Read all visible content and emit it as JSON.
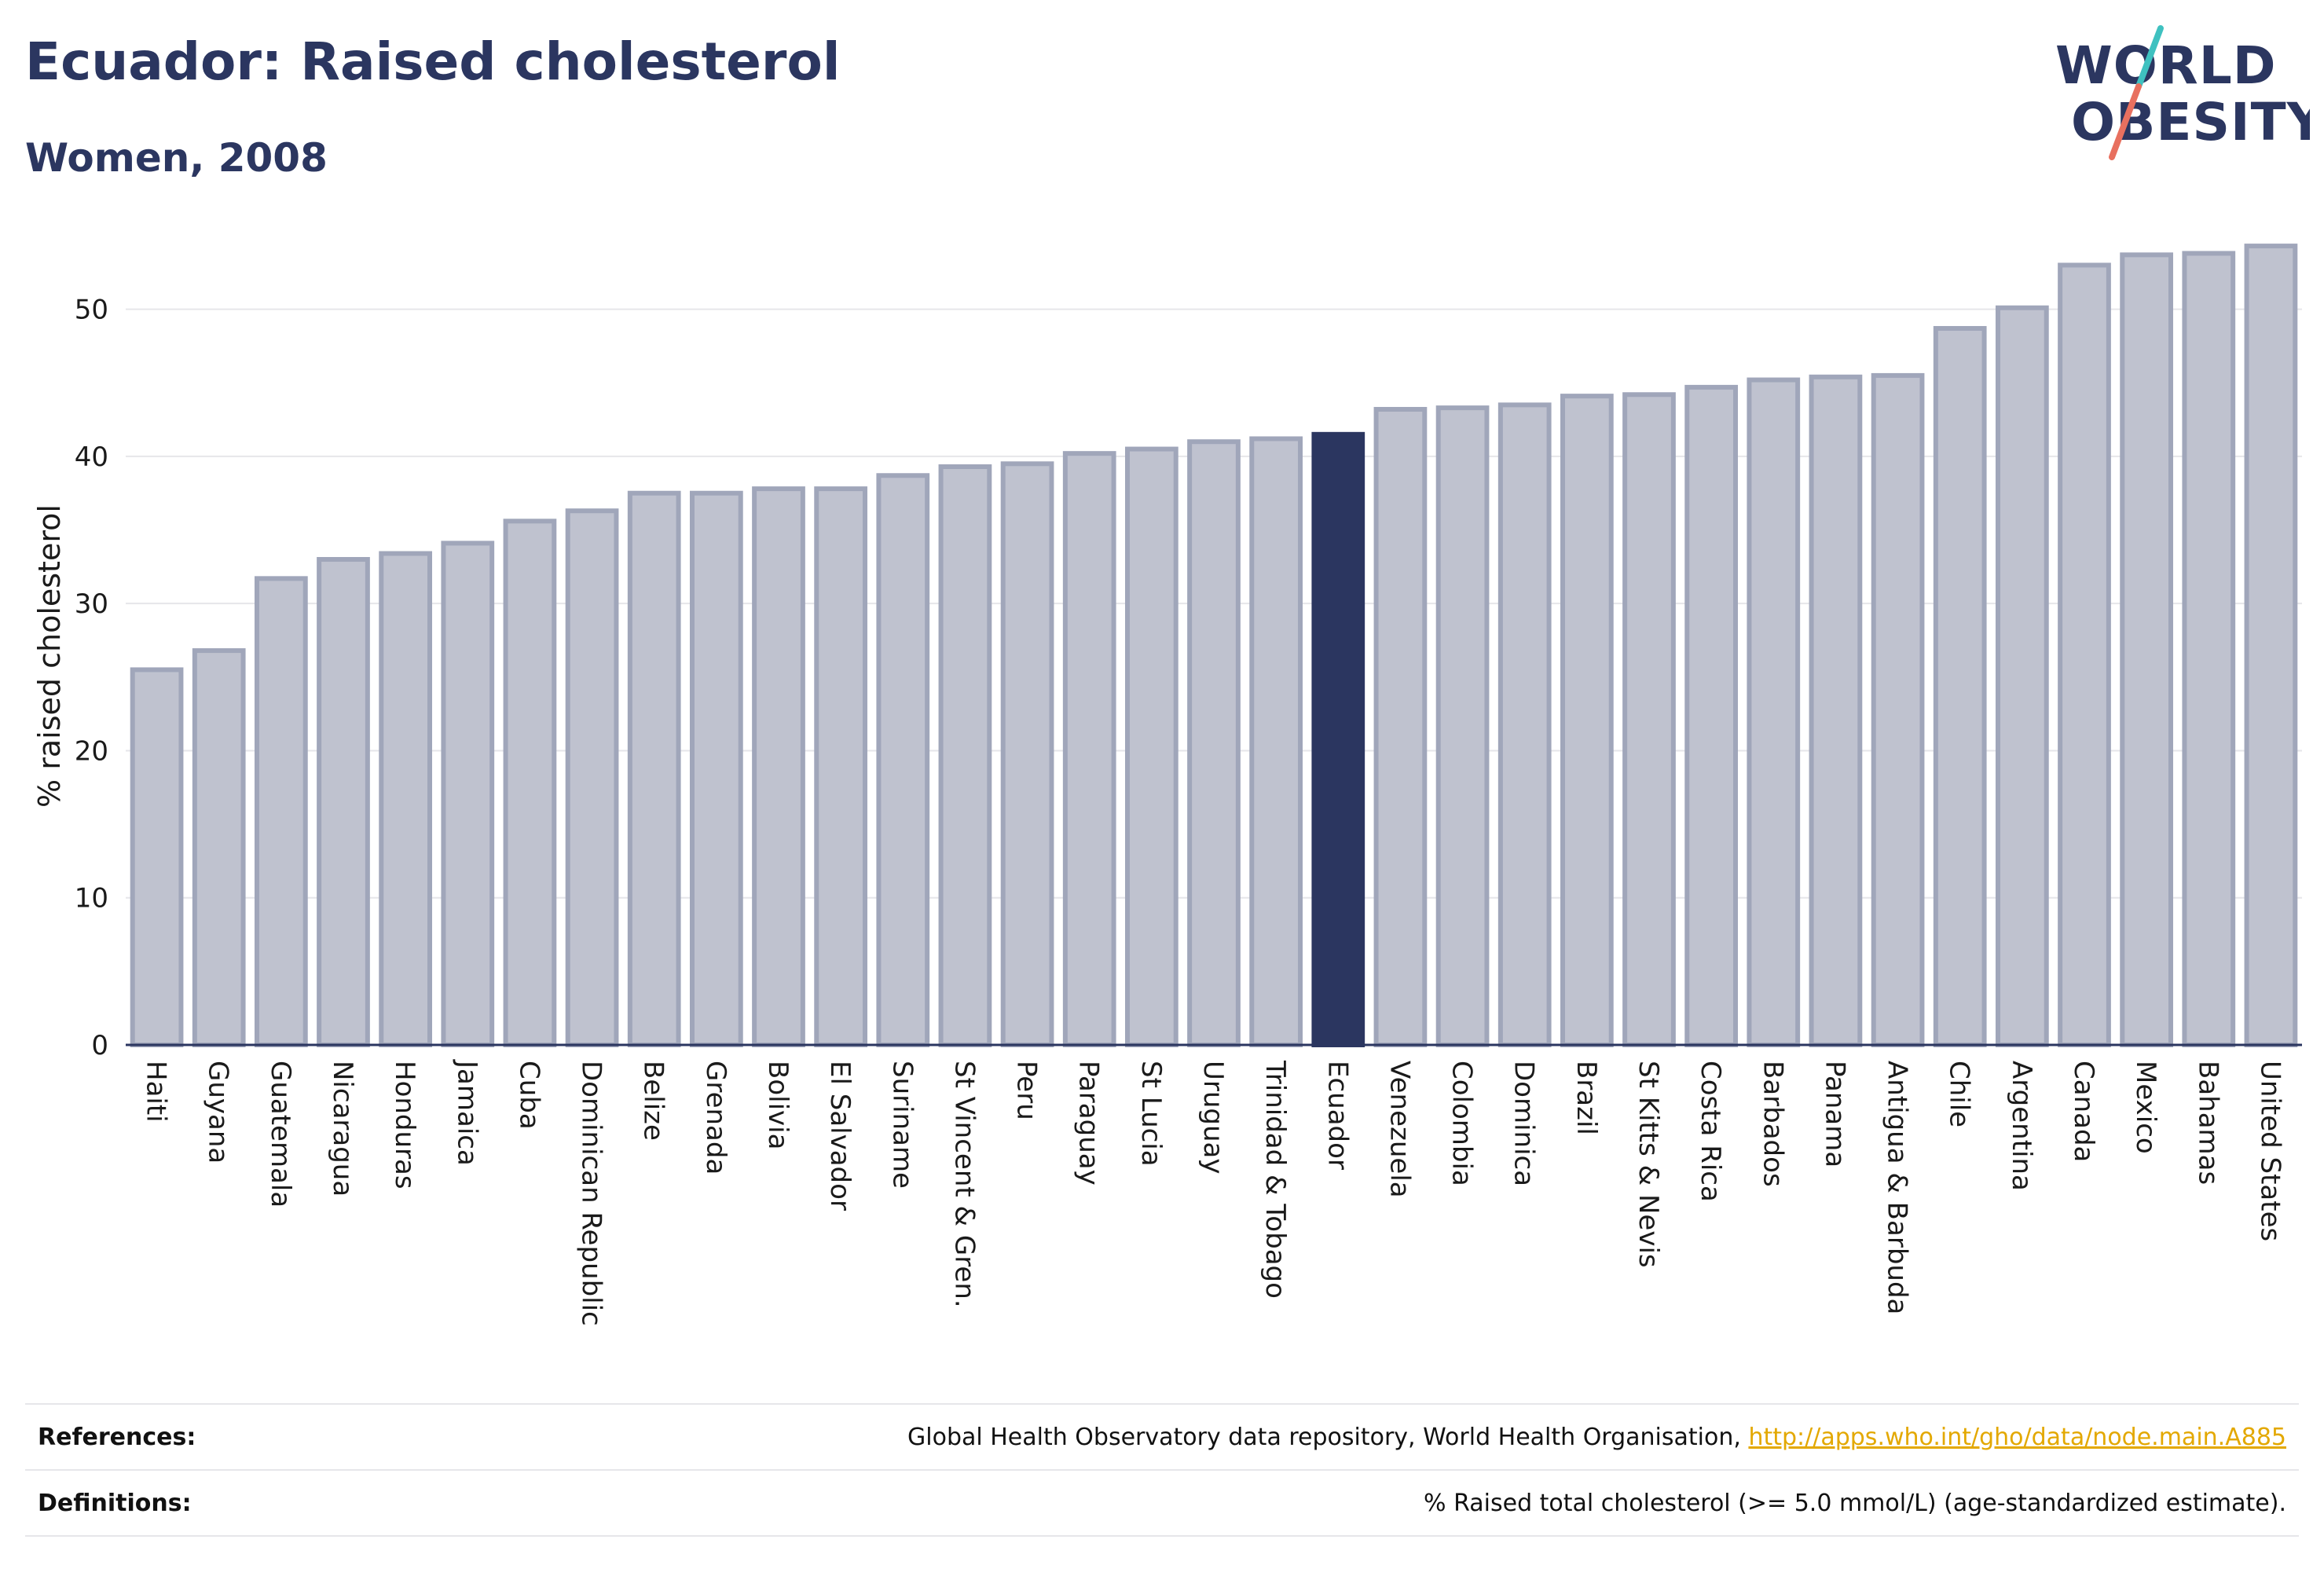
{
  "header": {
    "title": "Ecuador: Raised cholesterol",
    "subtitle": "Women, 2008"
  },
  "logo": {
    "line1": "WORLD",
    "line2": "OBESITY"
  },
  "chart_data": {
    "type": "bar",
    "ylabel": "% raised cholesterol",
    "xlabel": "",
    "ylim": [
      0,
      55
    ],
    "yticks": [
      0,
      10,
      20,
      30,
      40,
      50
    ],
    "grid": true,
    "highlight": "Ecuador",
    "colors": {
      "bar": "#bfc2cf",
      "bar_edge": "#a0a6ba",
      "highlight": "#2b3660",
      "grid": "#e6e6ea"
    },
    "categories": [
      "Haiti",
      "Guyana",
      "Guatemala",
      "Nicaragua",
      "Honduras",
      "Jamaica",
      "Cuba",
      "Dominican Republic",
      "Belize",
      "Grenada",
      "Bolivia",
      "El Salvador",
      "Suriname",
      "St Vincent & Gren.",
      "Peru",
      "Paraguay",
      "St Lucia",
      "Uruguay",
      "Trinidad & Tobago",
      "Ecuador",
      "Venezuela",
      "Colombia",
      "Dominica",
      "Brazil",
      "St Kitts & Nevis",
      "Costa Rica",
      "Barbados",
      "Panama",
      "Antigua & Barbuda",
      "Chile",
      "Argentina",
      "Canada",
      "Mexico",
      "Bahamas",
      "United States"
    ],
    "values": [
      25.5,
      26.8,
      31.7,
      33.0,
      33.4,
      34.1,
      35.6,
      36.3,
      37.5,
      37.5,
      37.8,
      37.8,
      38.7,
      39.3,
      39.5,
      40.2,
      40.5,
      41.0,
      41.2,
      41.5,
      43.2,
      43.3,
      43.5,
      44.1,
      44.2,
      44.7,
      45.2,
      45.4,
      45.5,
      48.7,
      50.1,
      53.0,
      53.7,
      53.8,
      54.3
    ]
  },
  "footer": {
    "references_label": "References:",
    "references_text": "Global Health Observatory data repository, World Health Organisation, ",
    "references_link": "http://apps.who.int/gho/data/node.main.A885",
    "definitions_label": "Definitions:",
    "definitions_text": "% Raised total cholesterol (>= 5.0 mmol/L) (age-standardized estimate)."
  }
}
